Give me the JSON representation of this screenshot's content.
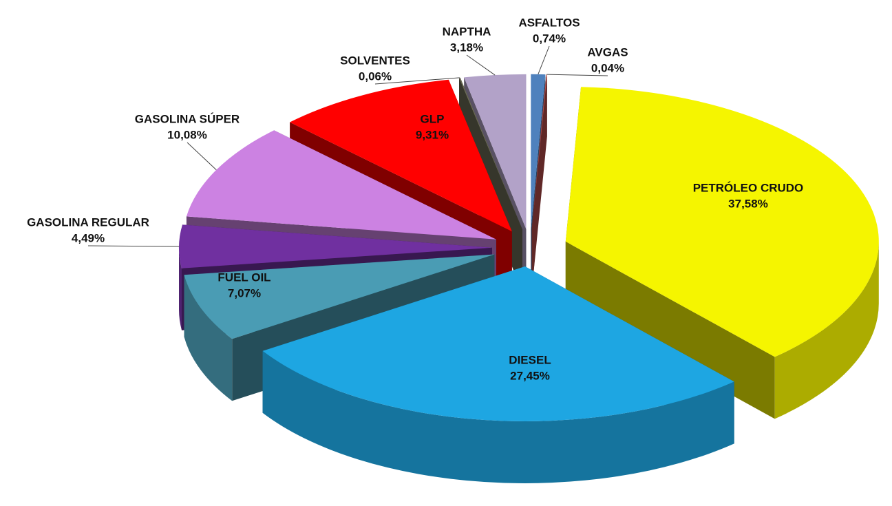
{
  "chart_data": {
    "type": "pie",
    "categories": [
      "ASFALTOS",
      "AVGAS",
      "PETRÓLEO CRUDO",
      "DIESEL",
      "FUEL OIL",
      "GASOLINA REGULAR",
      "GASOLINA SÚPER",
      "GLP",
      "SOLVENTES",
      "NAPTHA"
    ],
    "values": [
      0.74,
      0.04,
      37.58,
      27.45,
      7.07,
      4.49,
      10.08,
      9.31,
      0.06,
      3.18
    ],
    "value_labels": [
      "0,74%",
      "0,04%",
      "37,58%",
      "27,45%",
      "7,07%",
      "4,49%",
      "10,08%",
      "9,31%",
      "0,06%",
      "3,18%"
    ],
    "colors": [
      "#4f81bd",
      "#c0504d",
      "#f5f500",
      "#1ea6e2",
      "#4a9cb4",
      "#7030a0",
      "#cc82e2",
      "#ff0000",
      "#6b6b55",
      "#b2a2c8"
    ]
  }
}
